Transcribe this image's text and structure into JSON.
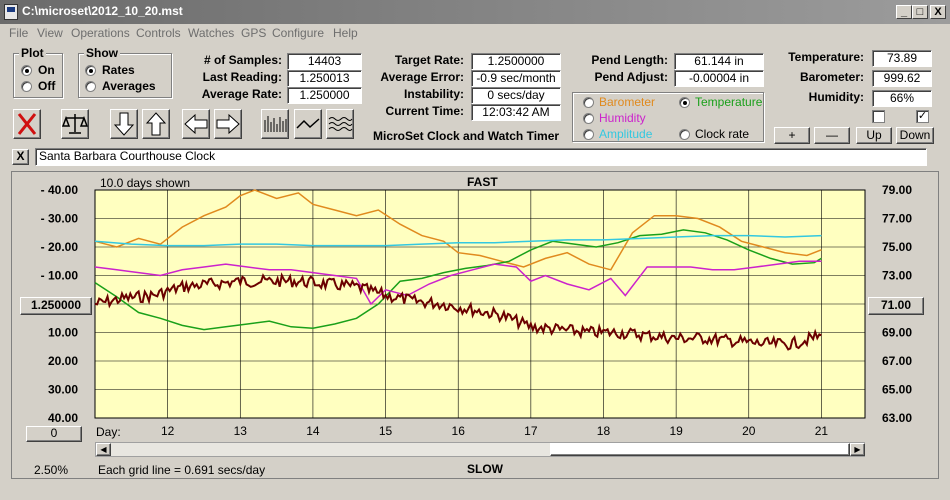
{
  "window": {
    "title": "C:\\microset\\2012_10_20.mst",
    "min": "_",
    "max": "□",
    "close": "X"
  },
  "menu": [
    "File",
    "View",
    "Operations",
    "Controls",
    "Watches",
    "GPS",
    "Configure",
    "Help"
  ],
  "plot": {
    "label": "Plot",
    "on": "On",
    "off": "Off",
    "selected": "On"
  },
  "show": {
    "label": "Show",
    "rates": "Rates",
    "averages": "Averages",
    "selected": "Rates"
  },
  "stats": {
    "samples_label": "# of Samples:",
    "samples": "14403",
    "last_label": "Last Reading:",
    "last": "1.250013",
    "avg_label": "Average Rate:",
    "avg": "1.250000",
    "target_label": "Target Rate:",
    "target": "1.2500000",
    "avgerr_label": "Average Error:",
    "avgerr": "-0.9 sec/month",
    "instab_label": "Instability:",
    "instab": "0 secs/day",
    "time_label": "Current Time:",
    "time": "12:03:42 AM",
    "pend_len_label": "Pend Length:",
    "pend_len": "61.144 in",
    "pend_adj_label": "Pend Adjust:",
    "pend_adj": "-0.00004 in",
    "temp_label": "Temperature:",
    "temp": "73.89",
    "baro_label": "Barometer:",
    "baro": "999.62",
    "hum_label": "Humidity:",
    "hum": "66%"
  },
  "app_name": "MicroSet Clock and Watch Timer",
  "sensors": {
    "barometer": "Barometer",
    "temperature": "Temperature",
    "humidity": "Humidity",
    "amplitude": "Amplitude",
    "clock_rate": "Clock rate",
    "colors": {
      "barometer": "#e08a1e",
      "temperature": "#1aa01a",
      "humidity": "#cc22cc",
      "amplitude": "#33c8e0",
      "clock_rate": "#000000"
    },
    "selected": "Temperature"
  },
  "sensor_buttons": {
    "plus": "+",
    "minus": "—",
    "up": "Up",
    "down": "Down"
  },
  "clock_name_close": "X",
  "clock_name": "Santa Barbara Courthouse Clock",
  "chart_data": {
    "type": "line",
    "title": "FAST",
    "bottom_label": "SLOW",
    "days_shown": "10.0 days shown",
    "grid_note": "Each grid line = 0.691 secs/day",
    "percent": "2.50%",
    "center_value": "1.250000",
    "right_center": "71.00",
    "zero_button": "0",
    "x_label": "Day:",
    "x_ticks": [
      "12",
      "13",
      "14",
      "15",
      "16",
      "17",
      "18",
      "19",
      "20",
      "21"
    ],
    "left_ticks": [
      "- 40.00",
      "- 30.00",
      "- 20.00",
      "- 10.00",
      "10.00",
      "20.00",
      "30.00",
      "40.00"
    ],
    "right_ticks": [
      "79.00",
      "77.00",
      "75.00",
      "73.00",
      "69.00",
      "67.00",
      "65.00",
      "63.00"
    ],
    "xlim": [
      11,
      21.6
    ],
    "ylim_left": [
      40,
      -40
    ],
    "ylim_right": [
      79,
      63
    ],
    "series": [
      {
        "name": "Barometer",
        "color": "#e08a1e",
        "x": [
          11.0,
          11.3,
          11.6,
          11.9,
          12.2,
          12.5,
          12.8,
          13.0,
          13.2,
          13.5,
          13.8,
          14.0,
          14.3,
          14.6,
          14.9,
          15.2,
          15.5,
          15.8,
          16.0,
          16.3,
          16.6,
          16.9,
          17.2,
          17.5,
          17.8,
          18.1,
          18.4,
          18.7,
          19.0,
          19.3,
          19.6,
          19.9,
          20.2,
          20.5,
          20.8,
          21.0
        ],
        "y": [
          22,
          20,
          23,
          21,
          27,
          31,
          34,
          38,
          40,
          37,
          39,
          35,
          33,
          31,
          33,
          28,
          24,
          22,
          18,
          17,
          15,
          13,
          16,
          18,
          14,
          12,
          25,
          31,
          31,
          30,
          27,
          22,
          20,
          18,
          17,
          19
        ]
      },
      {
        "name": "Temperature",
        "color": "#1aa01a",
        "x": [
          11.0,
          11.3,
          11.6,
          11.9,
          12.2,
          12.5,
          12.8,
          13.1,
          13.4,
          13.7,
          14.0,
          14.3,
          14.6,
          14.9,
          15.2,
          15.5,
          15.8,
          16.1,
          16.4,
          16.7,
          17.0,
          17.3,
          17.6,
          17.9,
          18.2,
          18.5,
          18.8,
          19.1,
          19.4,
          19.7,
          20.0,
          20.3,
          20.6,
          20.9,
          21.0
        ],
        "y": [
          72.5,
          71.5,
          70.4,
          70.0,
          69.5,
          69.2,
          69.4,
          69.6,
          69.8,
          69.4,
          69.3,
          69.6,
          70.0,
          71.0,
          72.6,
          72.8,
          73.2,
          73.5,
          73.7,
          74.0,
          74.8,
          75.4,
          75.2,
          75.0,
          75.3,
          75.8,
          75.9,
          76.2,
          76.0,
          75.5,
          74.8,
          74.2,
          73.8,
          73.9,
          74.2
        ]
      },
      {
        "name": "Humidity",
        "color": "#cc22cc",
        "x": [
          11.0,
          11.3,
          11.6,
          11.9,
          12.2,
          12.5,
          12.8,
          13.1,
          13.4,
          13.7,
          14.0,
          14.3,
          14.6,
          14.8,
          15.0,
          15.3,
          15.6,
          15.9,
          16.2,
          16.5,
          16.8,
          17.0,
          17.2,
          17.5,
          17.8,
          18.1,
          18.3,
          18.6,
          18.9,
          19.2,
          19.5,
          19.8,
          20.1,
          20.4,
          20.7,
          21.0
        ],
        "y": [
          13,
          12,
          11,
          10,
          12,
          13,
          14,
          13,
          12,
          12,
          11,
          10,
          9,
          0,
          5,
          3,
          7,
          10,
          12,
          14,
          13,
          8,
          10,
          7,
          5,
          9,
          3,
          13,
          13,
          13,
          12,
          12,
          13,
          14,
          15,
          15
        ]
      },
      {
        "name": "Amplitude",
        "color": "#33c8e0",
        "x": [
          11.0,
          11.5,
          12.0,
          12.5,
          13.0,
          13.5,
          14.0,
          14.5,
          15.0,
          15.5,
          16.0,
          16.5,
          17.0,
          17.5,
          18.0,
          18.5,
          19.0,
          19.5,
          20.0,
          20.5,
          21.0
        ],
        "y": [
          75.4,
          75.2,
          75.1,
          75.1,
          75.2,
          75.2,
          75.1,
          75.1,
          75.1,
          75.2,
          75.3,
          75.3,
          75.4,
          75.5,
          75.5,
          75.6,
          75.7,
          75.8,
          75.8,
          75.7,
          75.8
        ]
      },
      {
        "name": "Clock rate",
        "color": "#6b0000",
        "x": [
          11.0,
          11.4,
          11.8,
          12.2,
          12.6,
          13.0,
          13.4,
          13.8,
          14.2,
          14.6,
          15.0,
          15.4,
          15.8,
          16.2,
          16.6,
          17.0,
          17.4,
          17.8,
          18.2,
          18.6,
          19.0,
          19.4,
          19.8,
          20.2,
          20.6,
          21.0
        ],
        "y": [
          0,
          2,
          3,
          6,
          7,
          8,
          8,
          8,
          7,
          6,
          3,
          1,
          0,
          -2,
          -4,
          -8,
          -9,
          -10,
          -10,
          -11,
          -12,
          -12,
          -13,
          -14,
          -14,
          -11
        ]
      }
    ]
  }
}
